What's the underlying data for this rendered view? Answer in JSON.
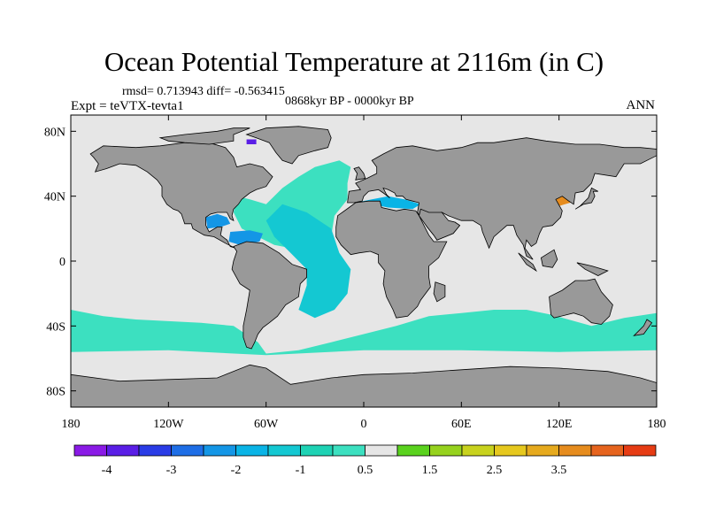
{
  "header": {
    "title": "Ocean Potential Temperature at 2116m (in C)",
    "stats": "rmsd= 0.713943 diff= -0.563415",
    "experiment": "Expt = teVTX-tevta1",
    "period": "0868kyr BP - 0000kyr BP",
    "season": "ANN"
  },
  "chart_data": {
    "type": "heatmap",
    "title": "Ocean Potential Temperature at 2116m (in C)",
    "units": "C",
    "lon_ticks": [
      {
        "value": -180,
        "label": "180"
      },
      {
        "value": -120,
        "label": "120W"
      },
      {
        "value": -60,
        "label": "60W"
      },
      {
        "value": 0,
        "label": "0"
      },
      {
        "value": 60,
        "label": "60E"
      },
      {
        "value": 120,
        "label": "120E"
      },
      {
        "value": 180,
        "label": "180"
      }
    ],
    "lat_ticks": [
      {
        "value": 80,
        "label": "80N"
      },
      {
        "value": 40,
        "label": "40N"
      },
      {
        "value": 0,
        "label": "0"
      },
      {
        "value": -40,
        "label": "40S"
      },
      {
        "value": -80,
        "label": "80S"
      }
    ],
    "xlim": [
      -180,
      180
    ],
    "ylim": [
      -90,
      90
    ],
    "colorbar": {
      "colors": [
        "#8a1ae6",
        "#5a1ee6",
        "#2a3ce6",
        "#1e6ee6",
        "#1496e6",
        "#0ab4e6",
        "#14c8d2",
        "#1ed2b4",
        "#3ce0c0",
        "#e6e6e6",
        "#5ad21e",
        "#96d21e",
        "#c8d21e",
        "#e6c81e",
        "#e6aa1e",
        "#e68c1e",
        "#e6641e",
        "#e63c14"
      ],
      "labels": [
        {
          "text": "-4",
          "boundary": 1
        },
        {
          "text": "-3",
          "boundary": 3
        },
        {
          "text": "-2",
          "boundary": 5
        },
        {
          "text": "-1",
          "boundary": 7
        },
        {
          "text": "0.5",
          "boundary": 9
        },
        {
          "text": "1.5",
          "boundary": 11
        },
        {
          "text": "2.5",
          "boundary": 13
        },
        {
          "text": "3.5",
          "boundary": 15
        }
      ]
    },
    "land_color": "#999999",
    "neutral_ocean_color": "#e6e6e6",
    "anomaly_regions": [
      {
        "name": "North Atlantic",
        "color": "#3ce0c0",
        "polygon": [
          [
            -78,
            40
          ],
          [
            -70,
            38
          ],
          [
            -60,
            35
          ],
          [
            -50,
            45
          ],
          [
            -40,
            52
          ],
          [
            -30,
            58
          ],
          [
            -15,
            62
          ],
          [
            -8,
            58
          ],
          [
            -10,
            48
          ],
          [
            -10,
            38
          ],
          [
            -18,
            28
          ],
          [
            -20,
            15
          ],
          [
            -30,
            10
          ],
          [
            -45,
            8
          ],
          [
            -55,
            10
          ],
          [
            -75,
            20
          ],
          [
            -80,
            30
          ]
        ]
      },
      {
        "name": "Atlantic core",
        "color": "#14c8d2",
        "polygon": [
          [
            -50,
            35
          ],
          [
            -35,
            30
          ],
          [
            -20,
            20
          ],
          [
            -15,
            5
          ],
          [
            -8,
            -5
          ],
          [
            -10,
            -20
          ],
          [
            -18,
            -30
          ],
          [
            -30,
            -35
          ],
          [
            -40,
            -30
          ],
          [
            -35,
            -15
          ],
          [
            -35,
            -5
          ],
          [
            -45,
            5
          ],
          [
            -55,
            15
          ],
          [
            -60,
            25
          ]
        ]
      },
      {
        "name": "Southern Ocean",
        "color": "#3ce0c0",
        "polygon": [
          [
            -180,
            -30
          ],
          [
            -160,
            -34
          ],
          [
            -140,
            -36
          ],
          [
            -100,
            -38
          ],
          [
            -80,
            -40
          ],
          [
            -65,
            -50
          ],
          [
            -60,
            -57
          ],
          [
            -40,
            -55
          ],
          [
            -20,
            -50
          ],
          [
            0,
            -45
          ],
          [
            20,
            -40
          ],
          [
            40,
            -34
          ],
          [
            60,
            -32
          ],
          [
            80,
            -30
          ],
          [
            100,
            -30
          ],
          [
            115,
            -33
          ],
          [
            140,
            -40
          ],
          [
            160,
            -35
          ],
          [
            180,
            -32
          ],
          [
            180,
            -55
          ],
          [
            120,
            -56
          ],
          [
            60,
            -55
          ],
          [
            0,
            -55
          ],
          [
            -60,
            -58
          ],
          [
            -120,
            -55
          ],
          [
            -180,
            -56
          ]
        ]
      },
      {
        "name": "Gulf of Mexico",
        "color": "#1496e6",
        "polygon": [
          [
            -97,
            27
          ],
          [
            -90,
            29
          ],
          [
            -84,
            27
          ],
          [
            -82,
            23
          ],
          [
            -88,
            21
          ],
          [
            -96,
            20
          ]
        ]
      },
      {
        "name": "Caribbean",
        "color": "#1496e6",
        "polygon": [
          [
            -82,
            18
          ],
          [
            -70,
            19
          ],
          [
            -62,
            17
          ],
          [
            -64,
            12
          ],
          [
            -76,
            10
          ],
          [
            -83,
            12
          ]
        ]
      },
      {
        "name": "Mediterranean",
        "color": "#0ab4e6",
        "polygon": [
          [
            -5,
            36
          ],
          [
            5,
            38
          ],
          [
            15,
            40
          ],
          [
            25,
            38
          ],
          [
            35,
            35
          ],
          [
            30,
            32
          ],
          [
            15,
            33
          ],
          [
            5,
            35
          ]
        ]
      },
      {
        "name": "Yellow Sea",
        "color": "#e68c1e",
        "polygon": [
          [
            118,
            39
          ],
          [
            126,
            41
          ],
          [
            127,
            36
          ],
          [
            120,
            34
          ]
        ]
      },
      {
        "name": "Baffin Bay",
        "color": "#5a1ee6",
        "polygon": [
          [
            -72,
            75
          ],
          [
            -66,
            75
          ],
          [
            -66,
            72
          ],
          [
            -72,
            72
          ]
        ]
      }
    ]
  }
}
